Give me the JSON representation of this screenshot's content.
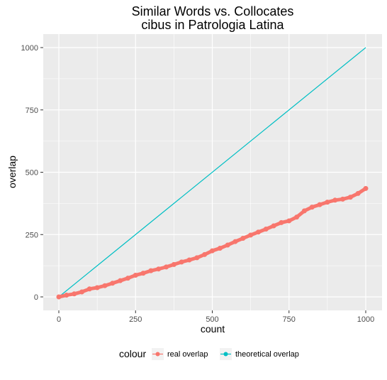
{
  "chart_data": {
    "type": "line",
    "title": [
      "Similar Words vs. Collocates",
      "cibus in Patrologia Latina"
    ],
    "xlabel": "count",
    "ylabel": "overlap",
    "xlim": [
      0,
      1000
    ],
    "ylim": [
      0,
      1000
    ],
    "xticks": [
      0,
      250,
      500,
      750,
      1000
    ],
    "yticks": [
      0,
      250,
      500,
      750,
      1000
    ],
    "grid": true,
    "legend": {
      "title": "colour",
      "position": "bottom",
      "entries": [
        "real overlap",
        "theoretical overlap"
      ]
    },
    "colors": {
      "real": "#f8766d",
      "theoretical": "#00bfc4",
      "panel": "#ebebeb",
      "grid": "#ffffff"
    },
    "series": [
      {
        "name": "real overlap",
        "style": "points+line",
        "x": [
          0,
          25,
          50,
          75,
          100,
          125,
          150,
          175,
          200,
          225,
          250,
          275,
          300,
          325,
          350,
          375,
          400,
          425,
          450,
          475,
          500,
          525,
          550,
          575,
          600,
          625,
          650,
          675,
          700,
          725,
          750,
          775,
          800,
          825,
          850,
          875,
          900,
          925,
          950,
          975,
          1000
        ],
        "y": [
          0,
          7,
          12,
          20,
          32,
          37,
          45,
          55,
          65,
          75,
          87,
          95,
          105,
          112,
          120,
          130,
          140,
          148,
          157,
          170,
          185,
          195,
          208,
          222,
          235,
          248,
          260,
          272,
          285,
          298,
          305,
          320,
          345,
          360,
          370,
          380,
          388,
          392,
          400,
          415,
          435
        ]
      },
      {
        "name": "theoretical overlap",
        "style": "line",
        "x": [
          0,
          1000
        ],
        "y": [
          0,
          1000
        ]
      }
    ]
  }
}
